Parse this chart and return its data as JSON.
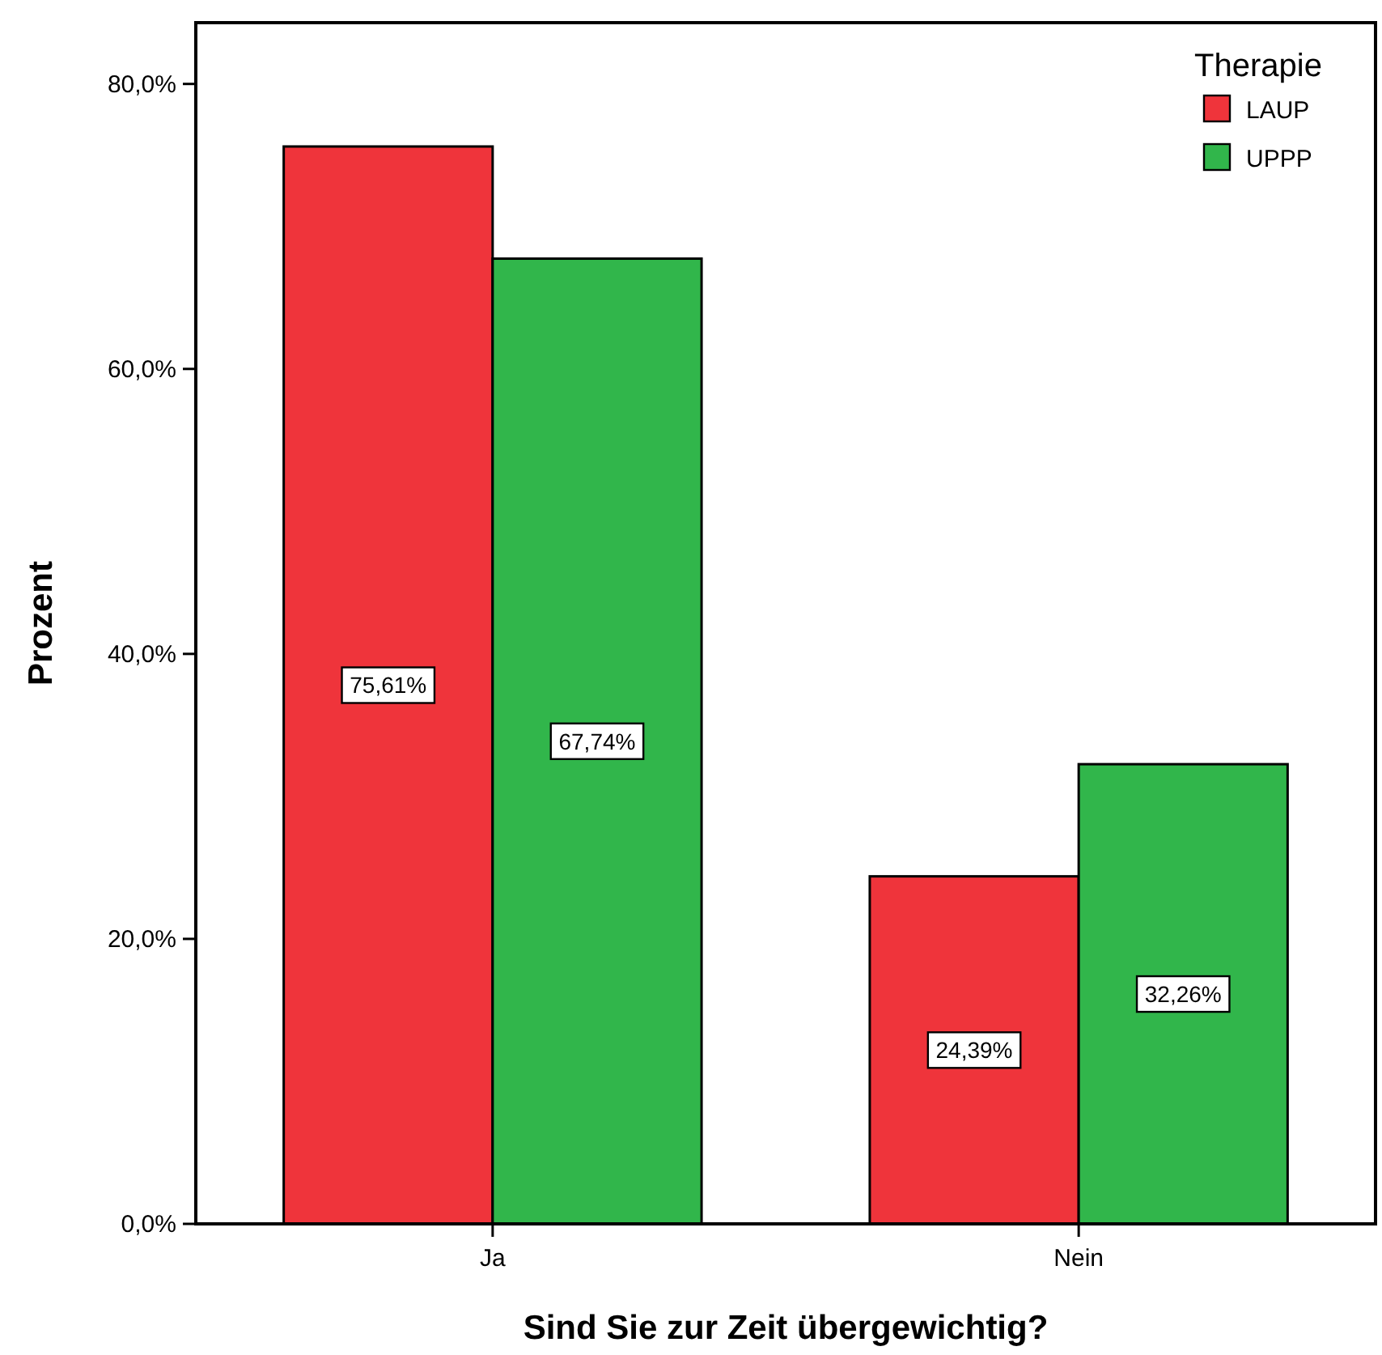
{
  "chart_data": {
    "type": "bar",
    "xlabel": "Sind Sie zur Zeit übergewichtig?",
    "ylabel": "Prozent",
    "legend_title": "Therapie",
    "legend": "top right",
    "categories": [
      "Ja",
      "Nein"
    ],
    "series": [
      {
        "name": "LAUP",
        "color": "#ef343b",
        "values": [
          75.61,
          24.39
        ],
        "value_labels": [
          "75,61%",
          "24,39%"
        ]
      },
      {
        "name": "UPPP",
        "color": "#31b64b",
        "values": [
          67.74,
          32.26
        ],
        "value_labels": [
          "67,74%",
          "32,26%"
        ]
      }
    ],
    "ylim": [
      0,
      84.3
    ],
    "yticks": [
      {
        "value": 0,
        "label": "0,0%"
      },
      {
        "value": 20,
        "label": "20,0%"
      },
      {
        "value": 40,
        "label": "40,0%"
      },
      {
        "value": 60,
        "label": "60,0%"
      },
      {
        "value": 80,
        "label": "80,0%"
      }
    ],
    "grid": false
  }
}
